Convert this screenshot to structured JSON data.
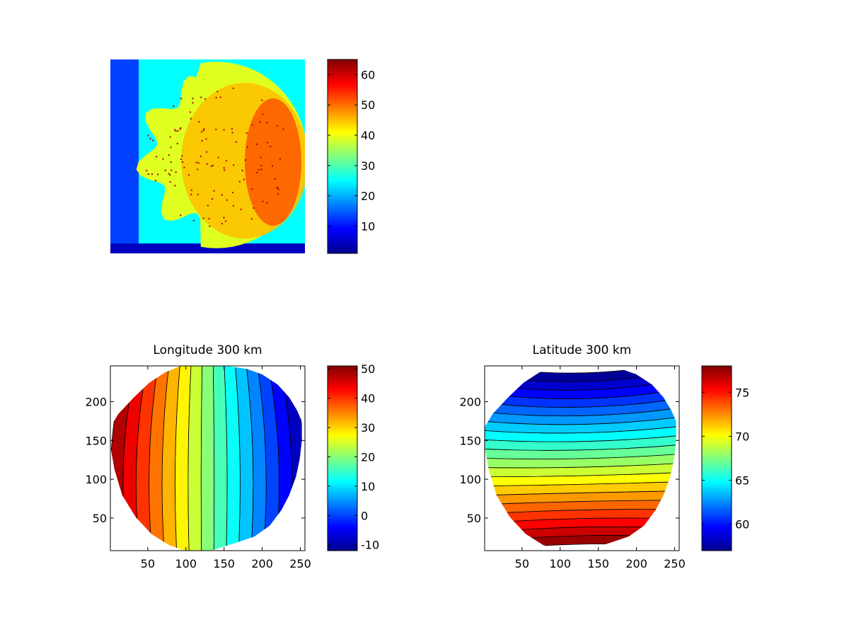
{
  "chart_data": [
    {
      "type": "heatmap",
      "title": "",
      "xlabel": "",
      "ylabel": "",
      "axes_ticks_visible": false,
      "colormap": "jet",
      "colorbar": {
        "range": [
          1,
          65
        ],
        "ticks": [
          10,
          20,
          30,
          40,
          50,
          60
        ],
        "tick_labels": [
          "10",
          "20",
          "30",
          "40",
          "50",
          "60"
        ]
      },
      "description_values": {
        "background_level": 25,
        "disk_level": 45,
        "disk_edge_level": 52,
        "corner_level": 5
      }
    },
    {
      "type": "heatmap",
      "title": "Longitude 300 km",
      "xlabel": "",
      "ylabel": "",
      "colormap": "jet",
      "contour_lines": true,
      "xlim": [
        1,
        256
      ],
      "ylim": [
        8,
        246
      ],
      "x_ticks": [
        50,
        100,
        150,
        200,
        250
      ],
      "x_tick_labels": [
        "50",
        "100",
        "150",
        "200",
        "250"
      ],
      "y_ticks": [
        50,
        100,
        150,
        200
      ],
      "y_tick_labels": [
        "50",
        "100",
        "150",
        "200"
      ],
      "field": {
        "left_value": 50,
        "right_value": -10,
        "center_value": 20
      },
      "colorbar": {
        "range": [
          -12,
          51
        ],
        "ticks": [
          -10,
          0,
          10,
          20,
          30,
          40,
          50
        ],
        "tick_labels": [
          "-10",
          "0",
          "10",
          "20",
          "30",
          "40",
          "50"
        ]
      }
    },
    {
      "type": "heatmap",
      "title": "Latitude 300 km",
      "xlabel": "",
      "ylabel": "",
      "colormap": "jet",
      "contour_lines": true,
      "xlim": [
        1,
        256
      ],
      "ylim": [
        8,
        246
      ],
      "x_ticks": [
        50,
        100,
        150,
        200,
        250
      ],
      "x_tick_labels": [
        "50",
        "100",
        "150",
        "200",
        "250"
      ],
      "y_ticks": [
        50,
        100,
        150,
        200
      ],
      "y_tick_labels": [
        "50",
        "100",
        "150",
        "200"
      ],
      "field": {
        "bottom_value": 78,
        "top_value": 57,
        "middle_value": 68
      },
      "colorbar": {
        "range": [
          57,
          78
        ],
        "ticks": [
          60,
          65,
          70,
          75
        ],
        "tick_labels": [
          "60",
          "65",
          "70",
          "75"
        ]
      }
    }
  ]
}
